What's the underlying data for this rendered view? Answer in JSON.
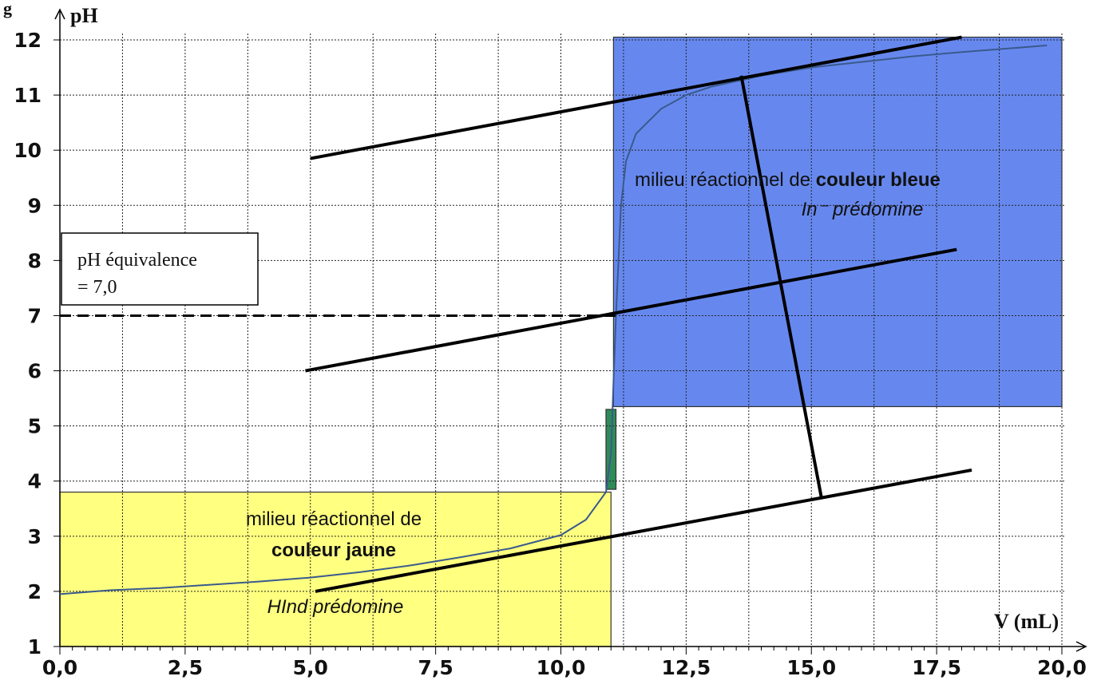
{
  "chart_data": {
    "type": "line",
    "top_label": "g",
    "xlabel": "V (mL)",
    "ylabel": "pH",
    "xlim": [
      0,
      20
    ],
    "ylim": [
      1,
      12
    ],
    "x_ticks": [
      "0,0",
      "2,5",
      "5,0",
      "7,5",
      "10,0",
      "12,5",
      "15,0",
      "17,5",
      "20,0"
    ],
    "y_ticks": [
      "1",
      "2",
      "3",
      "4",
      "5",
      "6",
      "7",
      "8",
      "9",
      "10",
      "11",
      "12"
    ],
    "grid": true,
    "series": [
      {
        "color": "#3a5a8c",
        "points": [
          [
            0.0,
            1.95
          ],
          [
            1.0,
            2.02
          ],
          [
            2.0,
            2.06
          ],
          [
            3.0,
            2.12
          ],
          [
            4.0,
            2.18
          ],
          [
            5.0,
            2.25
          ],
          [
            6.0,
            2.35
          ],
          [
            7.0,
            2.47
          ],
          [
            8.0,
            2.62
          ],
          [
            9.0,
            2.78
          ],
          [
            10.0,
            3.02
          ],
          [
            10.5,
            3.3
          ],
          [
            10.9,
            3.8
          ],
          [
            11.0,
            4.5
          ],
          [
            11.05,
            5.8
          ],
          [
            11.1,
            7.0
          ],
          [
            11.2,
            9.0
          ],
          [
            11.3,
            9.8
          ],
          [
            11.5,
            10.3
          ],
          [
            12.0,
            10.75
          ],
          [
            12.5,
            11.0
          ],
          [
            13.0,
            11.15
          ],
          [
            14.0,
            11.35
          ],
          [
            15.0,
            11.5
          ],
          [
            16.0,
            11.6
          ],
          [
            17.0,
            11.7
          ],
          [
            18.0,
            11.78
          ],
          [
            19.0,
            11.85
          ],
          [
            19.7,
            11.9
          ]
        ]
      }
    ],
    "zones": {
      "yellow": {
        "color": "#ffff80",
        "x_range": [
          0,
          11.0
        ],
        "y_range": [
          1,
          3.8
        ],
        "line1": "milieu réactionnel de",
        "line2_bold": "couleur jaune",
        "line3_italic": "HInd prédomine"
      },
      "blue": {
        "color": "#6688ee",
        "x_range": [
          11.05,
          20.0
        ],
        "y_range": [
          5.35,
          12.05
        ],
        "line1_normal": "milieu réactionnel de ",
        "line1_bold": "couleur bleue",
        "line2_italic": "In⁻ prédomine"
      },
      "green": {
        "color": "#2e8b57",
        "x_range": [
          10.9,
          11.1
        ],
        "y_range": [
          3.85,
          5.3
        ]
      }
    },
    "equivalence": {
      "ph": 7.0,
      "v_end": 11.1,
      "line1": "pH équivalence",
      "line2": "= 7,0"
    },
    "tangent_lines": [
      {
        "from": [
          5.0,
          9.85
        ],
        "to": [
          18.0,
          12.05
        ]
      },
      {
        "from": [
          4.9,
          6.0
        ],
        "to": [
          17.9,
          8.2
        ]
      },
      {
        "from": [
          5.1,
          2.0
        ],
        "to": [
          18.2,
          4.2
        ]
      },
      {
        "from": [
          13.6,
          11.35
        ],
        "to": [
          15.2,
          3.7
        ]
      }
    ]
  }
}
